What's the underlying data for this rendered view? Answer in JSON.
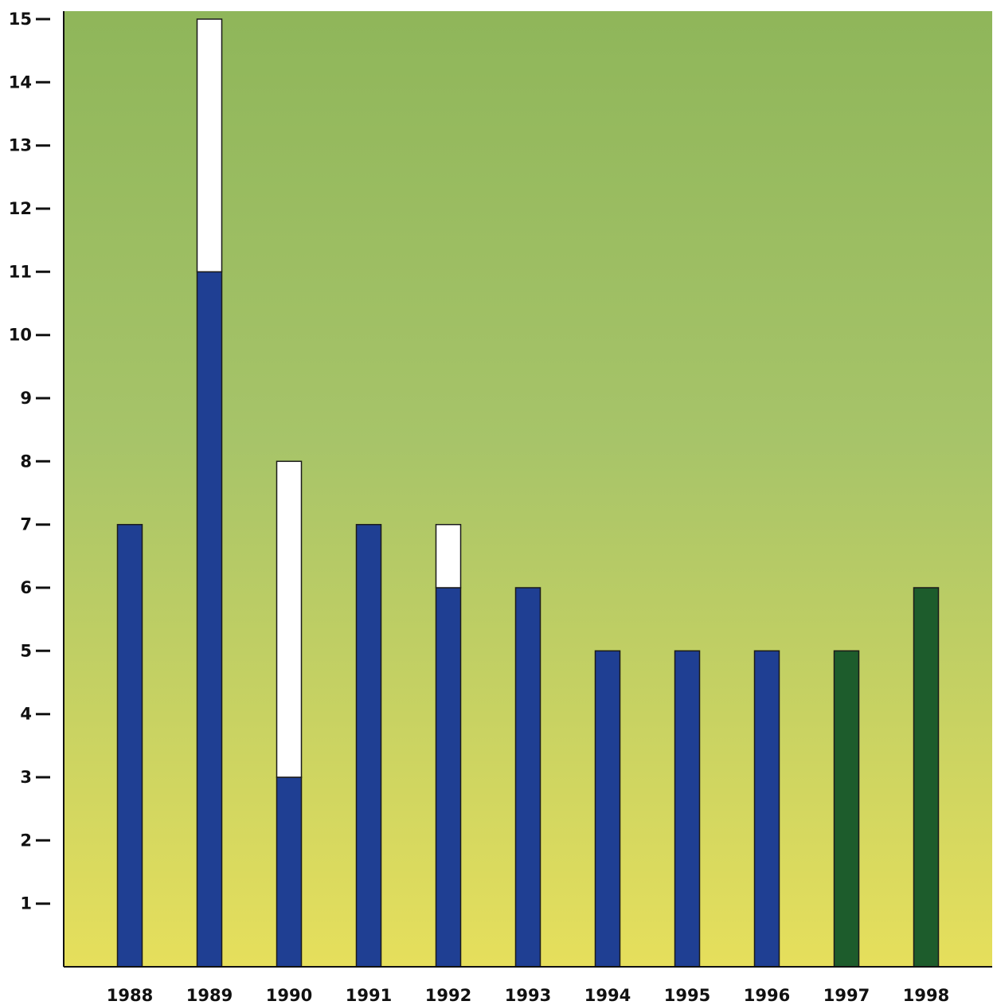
{
  "chart_data": {
    "type": "bar",
    "stacked": true,
    "title": "",
    "xlabel": "",
    "ylabel": "",
    "ylim": [
      0,
      15
    ],
    "yticks": [
      1,
      2,
      3,
      4,
      5,
      6,
      7,
      8,
      9,
      10,
      11,
      12,
      13,
      14,
      15
    ],
    "grid": false,
    "legend": "none",
    "categories": [
      "1988",
      "1989",
      "1990",
      "1991",
      "1992",
      "1993",
      "1994",
      "1995",
      "1996",
      "1997",
      "1998"
    ],
    "series": [
      {
        "color": "#1f3f93",
        "values": [
          7,
          11,
          3,
          7,
          6,
          6,
          5,
          5,
          5,
          null,
          null
        ]
      },
      {
        "color": "#1d5c2c",
        "values": [
          null,
          null,
          null,
          null,
          null,
          null,
          null,
          null,
          null,
          5,
          6
        ]
      },
      {
        "color": "#ffffff",
        "values": [
          0,
          4,
          5,
          0,
          1,
          0,
          0,
          0,
          0,
          0,
          0
        ]
      }
    ],
    "background_gradient": [
      "#8fb65a",
      "#a7c469",
      "#e6df5c"
    ]
  }
}
